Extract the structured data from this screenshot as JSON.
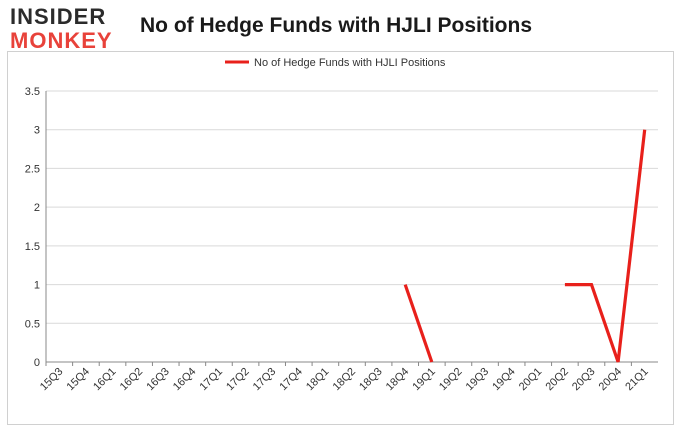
{
  "logo": {
    "line1": "INSIDER",
    "line2": "MONKEY"
  },
  "chart_data": {
    "type": "line",
    "title": "No of Hedge Funds with HJLI Positions",
    "categories": [
      "15Q3",
      "15Q4",
      "16Q1",
      "16Q2",
      "16Q3",
      "16Q4",
      "17Q1",
      "17Q2",
      "17Q3",
      "17Q4",
      "18Q1",
      "18Q2",
      "18Q3",
      "18Q4",
      "19Q1",
      "19Q2",
      "19Q3",
      "19Q4",
      "20Q1",
      "20Q2",
      "20Q3",
      "20Q4",
      "21Q1"
    ],
    "series": [
      {
        "name": "No of Hedge Funds with HJLI Positions",
        "color": "#e8201b",
        "values": [
          null,
          null,
          null,
          null,
          null,
          null,
          null,
          null,
          null,
          null,
          null,
          null,
          null,
          1,
          0,
          null,
          null,
          null,
          null,
          1,
          1,
          0,
          3
        ]
      }
    ],
    "ylim": [
      0,
      3.5
    ],
    "yticks": [
      "0",
      "0.5",
      "1",
      "1.5",
      "2",
      "2.5",
      "3",
      "3.5"
    ],
    "grid": true,
    "legend_position": "top-center"
  }
}
